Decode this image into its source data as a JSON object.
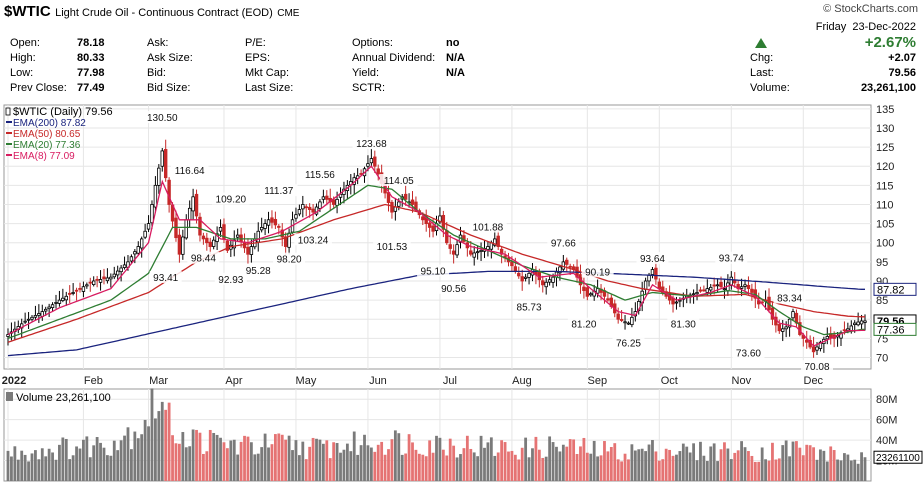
{
  "header": {
    "symbol": "$WTIC",
    "name": "Light Crude Oil - Continuous Contract (EOD)",
    "exchange": "CME",
    "watermark": "© StockCharts.com",
    "day": "Friday",
    "date": "23-Dec-2022",
    "pct_change": "+2.67%",
    "stats_left": [
      {
        "label": "Open:",
        "value": "78.18"
      },
      {
        "label": "High:",
        "value": "80.33"
      },
      {
        "label": "Low:",
        "value": "77.98"
      },
      {
        "label": "Prev Close:",
        "value": "77.49"
      }
    ],
    "stats_mid": [
      {
        "label": "Ask:",
        "value": ""
      },
      {
        "label": "Ask Size:",
        "value": ""
      },
      {
        "label": "Bid:",
        "value": ""
      },
      {
        "label": "Bid Size:",
        "value": ""
      }
    ],
    "stats_mid2": [
      {
        "label": "P/E:",
        "value": ""
      },
      {
        "label": "EPS:",
        "value": ""
      },
      {
        "label": "Mkt Cap:",
        "value": ""
      },
      {
        "label": "Last Size:",
        "value": ""
      }
    ],
    "stats_right": [
      {
        "label": "Options:",
        "value": "no"
      },
      {
        "label": "Annual Dividend:",
        "value": "N/A"
      },
      {
        "label": "Yield:",
        "value": "N/A"
      },
      {
        "label": "SCTR:",
        "value": ""
      }
    ],
    "stats_far": [
      {
        "label": "Chg:",
        "value": "+2.07"
      },
      {
        "label": "Last:",
        "value": "79.56"
      },
      {
        "label": "Volume:",
        "value": "23,261,100"
      }
    ],
    "up_color": "#2e7d32"
  },
  "chart_data": [
    {
      "type": "candlestick",
      "legend": [
        {
          "text": "$WTIC (Daily) 79.56",
          "color": "#000000"
        },
        {
          "text": "EMA(200) 87.82",
          "color": "#1a237e"
        },
        {
          "text": "EMA(50) 80.65",
          "color": "#c62828"
        },
        {
          "text": "EMA(20) 77.36",
          "color": "#2e7d32"
        },
        {
          "text": "EMA(8) 77.09",
          "color": "#d81b60"
        }
      ],
      "legend_position": "top-left",
      "y_ticks": [
        70,
        75,
        80,
        85,
        90,
        95,
        100,
        105,
        110,
        115,
        120,
        125,
        130,
        135
      ],
      "ylim": [
        67,
        136
      ],
      "x_ticks": [
        {
          "label": "2022",
          "day": 0
        },
        {
          "label": "Feb",
          "day": 22
        },
        {
          "label": "Mar",
          "day": 41
        },
        {
          "label": "Apr",
          "day": 63
        },
        {
          "label": "May",
          "day": 84
        },
        {
          "label": "Jun",
          "day": 105
        },
        {
          "label": "Jul",
          "day": 126
        },
        {
          "label": "Aug",
          "day": 147
        },
        {
          "label": "Sep",
          "day": 169
        },
        {
          "label": "Oct",
          "day": 190
        },
        {
          "label": "Nov",
          "day": 211
        },
        {
          "label": "Dec",
          "day": 232
        }
      ],
      "x_range": [
        0,
        250
      ],
      "price_anchors": [
        [
          0,
          76
        ],
        [
          5,
          79.5
        ],
        [
          10,
          82
        ],
        [
          15,
          85
        ],
        [
          20,
          87.5
        ],
        [
          25,
          90
        ],
        [
          30,
          91
        ],
        [
          35,
          95
        ],
        [
          38,
          99
        ],
        [
          41,
          105
        ],
        [
          43,
          115
        ],
        [
          45,
          124
        ],
        [
          47,
          110
        ],
        [
          50,
          97
        ],
        [
          52,
          106
        ],
        [
          54,
          112
        ],
        [
          56,
          102
        ],
        [
          59,
          99
        ],
        [
          62,
          104
        ],
        [
          64,
          98
        ],
        [
          67,
          102
        ],
        [
          70,
          97
        ],
        [
          73,
          103
        ],
        [
          76,
          106
        ],
        [
          79,
          104
        ],
        [
          81,
          99
        ],
        [
          83,
          106
        ],
        [
          86,
          110
        ],
        [
          89,
          108
        ],
        [
          92,
          112
        ],
        [
          95,
          110
        ],
        [
          98,
          114
        ],
        [
          101,
          117
        ],
        [
          103,
          118
        ],
        [
          106,
          122
        ],
        [
          108,
          118
        ],
        [
          110,
          113
        ],
        [
          112,
          108
        ],
        [
          115,
          112
        ],
        [
          118,
          110
        ],
        [
          121,
          106
        ],
        [
          124,
          103
        ],
        [
          126,
          107
        ],
        [
          128,
          100
        ],
        [
          130,
          97
        ],
        [
          132,
          102
        ],
        [
          135,
          97
        ],
        [
          138,
          98
        ],
        [
          140,
          99
        ],
        [
          142,
          101
        ],
        [
          144,
          97
        ],
        [
          147,
          94
        ],
        [
          150,
          90
        ],
        [
          153,
          93
        ],
        [
          156,
          89
        ],
        [
          159,
          91
        ],
        [
          162,
          95
        ],
        [
          165,
          93
        ],
        [
          167,
          89
        ],
        [
          169,
          86
        ],
        [
          172,
          88
        ],
        [
          175,
          85
        ],
        [
          178,
          80
        ],
        [
          181,
          79
        ],
        [
          183,
          82
        ],
        [
          186,
          90
        ],
        [
          188,
          93
        ],
        [
          190,
          88
        ],
        [
          192,
          86
        ],
        [
          194,
          84
        ],
        [
          196,
          85
        ],
        [
          198,
          86
        ],
        [
          201,
          87
        ],
        [
          204,
          88
        ],
        [
          207,
          89
        ],
        [
          209,
          88
        ],
        [
          211,
          91
        ],
        [
          213,
          88
        ],
        [
          215,
          89
        ],
        [
          217,
          87
        ],
        [
          219,
          84
        ],
        [
          221,
          85
        ],
        [
          223,
          80
        ],
        [
          225,
          77
        ],
        [
          227,
          78
        ],
        [
          229,
          82
        ],
        [
          231,
          76
        ],
        [
          233,
          74
        ],
        [
          235,
          71.5
        ],
        [
          237,
          74
        ],
        [
          239,
          75.5
        ],
        [
          241,
          75
        ],
        [
          243,
          76.5
        ],
        [
          245,
          77.5
        ],
        [
          247,
          79
        ],
        [
          249,
          79.56
        ]
      ],
      "ema200": [
        [
          0,
          70.5
        ],
        [
          20,
          72
        ],
        [
          40,
          76
        ],
        [
          60,
          80
        ],
        [
          80,
          84
        ],
        [
          100,
          88
        ],
        [
          120,
          91.5
        ],
        [
          140,
          92.5
        ],
        [
          160,
          92.5
        ],
        [
          180,
          91.8
        ],
        [
          200,
          91
        ],
        [
          220,
          89.8
        ],
        [
          240,
          88.4
        ],
        [
          249,
          87.82
        ]
      ],
      "ema50": [
        [
          0,
          74
        ],
        [
          20,
          80
        ],
        [
          41,
          87
        ],
        [
          55,
          95
        ],
        [
          65,
          99
        ],
        [
          80,
          101
        ],
        [
          95,
          106
        ],
        [
          110,
          110
        ],
        [
          120,
          108
        ],
        [
          135,
          102
        ],
        [
          150,
          97
        ],
        [
          165,
          93
        ],
        [
          175,
          90
        ],
        [
          185,
          88
        ],
        [
          200,
          86
        ],
        [
          215,
          86.5
        ],
        [
          225,
          84
        ],
        [
          235,
          82
        ],
        [
          245,
          80.8
        ],
        [
          249,
          80.65
        ]
      ],
      "ema20": [
        [
          0,
          75
        ],
        [
          15,
          80
        ],
        [
          30,
          85
        ],
        [
          41,
          92
        ],
        [
          48,
          104
        ],
        [
          55,
          104
        ],
        [
          65,
          101
        ],
        [
          75,
          101
        ],
        [
          85,
          103
        ],
        [
          95,
          109
        ],
        [
          105,
          115
        ],
        [
          112,
          114
        ],
        [
          120,
          108
        ],
        [
          130,
          102
        ],
        [
          140,
          98
        ],
        [
          150,
          94
        ],
        [
          160,
          91
        ],
        [
          170,
          89
        ],
        [
          180,
          85
        ],
        [
          188,
          87
        ],
        [
          200,
          86
        ],
        [
          210,
          87.5
        ],
        [
          218,
          86.5
        ],
        [
          225,
          82
        ],
        [
          232,
          78
        ],
        [
          238,
          76
        ],
        [
          244,
          76.5
        ],
        [
          249,
          77.36
        ]
      ],
      "ema8": [
        [
          0,
          76
        ],
        [
          15,
          83
        ],
        [
          30,
          88
        ],
        [
          41,
          100
        ],
        [
          45,
          116
        ],
        [
          50,
          106
        ],
        [
          56,
          106
        ],
        [
          62,
          101
        ],
        [
          70,
          100
        ],
        [
          80,
          103
        ],
        [
          90,
          108
        ],
        [
          100,
          115
        ],
        [
          106,
          120
        ],
        [
          112,
          112
        ],
        [
          120,
          108
        ],
        [
          128,
          102
        ],
        [
          135,
          99
        ],
        [
          145,
          97
        ],
        [
          155,
          91
        ],
        [
          165,
          92
        ],
        [
          170,
          88
        ],
        [
          178,
          82
        ],
        [
          183,
          81
        ],
        [
          188,
          89
        ],
        [
          195,
          85
        ],
        [
          205,
          87
        ],
        [
          211,
          89
        ],
        [
          218,
          86
        ],
        [
          225,
          79
        ],
        [
          230,
          78
        ],
        [
          235,
          73
        ],
        [
          240,
          75
        ],
        [
          245,
          77
        ],
        [
          249,
          77.09
        ]
      ],
      "annotations": [
        {
          "text": "130.50",
          "day": 45,
          "value": 130.5,
          "pos": "above"
        },
        {
          "text": "116.64",
          "day": 53,
          "value": 116.64,
          "pos": "above"
        },
        {
          "text": "93.41",
          "day": 46,
          "value": 93.41,
          "pos": "below"
        },
        {
          "text": "98.44",
          "day": 57,
          "value": 98.44,
          "pos": "below"
        },
        {
          "text": "109.20",
          "day": 65,
          "value": 109.2,
          "pos": "above"
        },
        {
          "text": "92.93",
          "day": 65,
          "value": 92.93,
          "pos": "below"
        },
        {
          "text": "111.37",
          "day": 79,
          "value": 111.37,
          "pos": "above"
        },
        {
          "text": "95.28",
          "day": 73,
          "value": 95.28,
          "pos": "below"
        },
        {
          "text": "115.56",
          "day": 91,
          "value": 115.56,
          "pos": "above"
        },
        {
          "text": "98.20",
          "day": 82,
          "value": 98.2,
          "pos": "below"
        },
        {
          "text": "103.24",
          "day": 89,
          "value": 103.24,
          "pos": "below"
        },
        {
          "text": "123.68",
          "day": 106,
          "value": 123.68,
          "pos": "above"
        },
        {
          "text": "114.05",
          "day": 114,
          "value": 114.05,
          "pos": "above"
        },
        {
          "text": "101.53",
          "day": 112,
          "value": 101.53,
          "pos": "below"
        },
        {
          "text": "95.10",
          "day": 124,
          "value": 95.1,
          "pos": "below"
        },
        {
          "text": "90.56",
          "day": 130,
          "value": 90.56,
          "pos": "below"
        },
        {
          "text": "101.88",
          "day": 140,
          "value": 101.88,
          "pos": "above"
        },
        {
          "text": "85.73",
          "day": 152,
          "value": 85.73,
          "pos": "below"
        },
        {
          "text": "97.66",
          "day": 162,
          "value": 97.66,
          "pos": "above"
        },
        {
          "text": "90.19",
          "day": 172,
          "value": 90.19,
          "pos": "above"
        },
        {
          "text": "81.20",
          "day": 168,
          "value": 81.2,
          "pos": "below"
        },
        {
          "text": "76.25",
          "day": 181,
          "value": 76.25,
          "pos": "below"
        },
        {
          "text": "93.64",
          "day": 188,
          "value": 93.64,
          "pos": "above"
        },
        {
          "text": "81.30",
          "day": 197,
          "value": 81.3,
          "pos": "below"
        },
        {
          "text": "93.74",
          "day": 211,
          "value": 93.74,
          "pos": "above"
        },
        {
          "text": "83.34",
          "day": 228,
          "value": 83.34,
          "pos": "above"
        },
        {
          "text": "73.60",
          "day": 216,
          "value": 73.6,
          "pos": "below"
        },
        {
          "text": "70.08",
          "day": 236,
          "value": 70.08,
          "pos": "below"
        }
      ],
      "right_tags": [
        {
          "text": "87.82",
          "value": 87.82,
          "border": "#1a237e"
        },
        {
          "text": "79.56",
          "value": 79.56,
          "border": "#000000"
        },
        {
          "text": "77.36",
          "value": 77.36,
          "border": "#2e7d32"
        }
      ],
      "up_color": "#000000",
      "down_color": "#c62828",
      "grid": true
    },
    {
      "type": "bar",
      "title": "Volume 23,261,100",
      "y_ticks": [
        {
          "v": 20,
          "label": "20M"
        },
        {
          "v": 40,
          "label": "40M"
        },
        {
          "v": 60,
          "label": "60M"
        },
        {
          "v": 80,
          "label": "80M"
        }
      ],
      "ylim": [
        0,
        90
      ],
      "last_tag": "23261100",
      "last_value": 23.26,
      "volume_anchors": [
        [
          0,
          28
        ],
        [
          10,
          32
        ],
        [
          20,
          35
        ],
        [
          30,
          40
        ],
        [
          38,
          55
        ],
        [
          41,
          70
        ],
        [
          44,
          85
        ],
        [
          47,
          60
        ],
        [
          52,
          45
        ],
        [
          60,
          40
        ],
        [
          70,
          36
        ],
        [
          80,
          38
        ],
        [
          90,
          34
        ],
        [
          100,
          37
        ],
        [
          110,
          42
        ],
        [
          120,
          40
        ],
        [
          130,
          38
        ],
        [
          140,
          35
        ],
        [
          150,
          33
        ],
        [
          160,
          36
        ],
        [
          170,
          32
        ],
        [
          180,
          30
        ],
        [
          190,
          33
        ],
        [
          200,
          30
        ],
        [
          210,
          32
        ],
        [
          220,
          30
        ],
        [
          230,
          34
        ],
        [
          240,
          27
        ],
        [
          249,
          23.26
        ]
      ],
      "up_color": "#7a7a7a",
      "down_color": "#e57373"
    }
  ]
}
